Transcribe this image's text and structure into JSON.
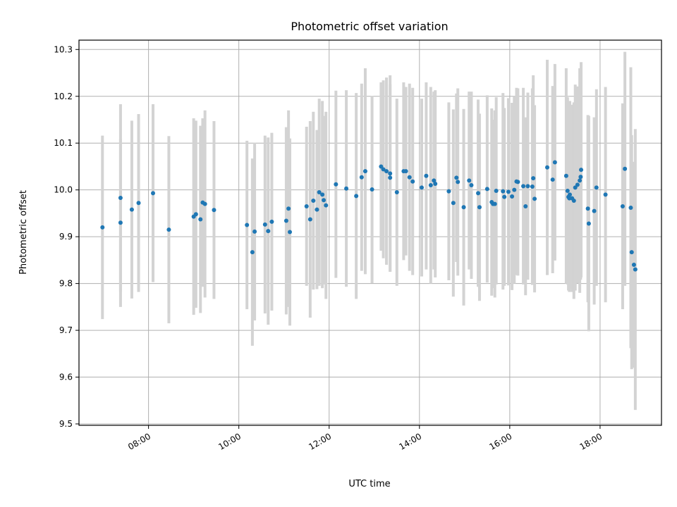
{
  "chart_data": {
    "type": "scatter",
    "title": "Photometric offset variation",
    "xlabel": "UTC time",
    "ylabel": "Photometric offset",
    "x_unit": "hours UTC",
    "xlim": [
      6.46,
      19.36
    ],
    "ylim": [
      9.497,
      10.32
    ],
    "x_ticks": [
      8,
      10,
      12,
      14,
      16,
      18
    ],
    "x_tick_labels": [
      "08:00",
      "10:00",
      "12:00",
      "14:00",
      "16:00",
      "18:00"
    ],
    "y_ticks": [
      9.5,
      9.6,
      9.7,
      9.8,
      9.9,
      10.0,
      10.1,
      10.2,
      10.3
    ],
    "y_tick_labels": [
      "9.5",
      "9.6",
      "9.7",
      "9.8",
      "9.9",
      "10.0",
      "10.1",
      "10.2",
      "10.3"
    ],
    "grid": true,
    "legend": "none",
    "colors": {
      "point": "#1f77b4",
      "errorbar": "#d3d3d3",
      "grid": "#b0b0b0",
      "axes": "#000000"
    },
    "series": [
      {
        "x": [
          6.98,
          7.38,
          7.38,
          7.63,
          7.78,
          8.1,
          8.45,
          9.0,
          9.05,
          9.15,
          9.2,
          9.25,
          9.45,
          10.18,
          10.3,
          10.35,
          10.58,
          10.65,
          10.73,
          11.05,
          11.1,
          11.13,
          11.5,
          11.58,
          11.65,
          11.73,
          11.78,
          11.85,
          11.88,
          11.93,
          12.15,
          12.38,
          12.6,
          12.72,
          12.8,
          12.95,
          13.15,
          13.2,
          13.27,
          13.35,
          13.35,
          13.5,
          13.65,
          13.7,
          13.78,
          13.85,
          14.05,
          14.15,
          14.25,
          14.32,
          14.35,
          14.65,
          14.75,
          14.82,
          14.85,
          14.98,
          15.1,
          15.15,
          15.3,
          15.33,
          15.5,
          15.6,
          15.63,
          15.67,
          15.7,
          15.85,
          15.88,
          15.97,
          16.05,
          16.1,
          16.15,
          16.18,
          16.3,
          16.35,
          16.4,
          16.5,
          16.52,
          16.55,
          16.83,
          16.95,
          17.0,
          17.25,
          17.28,
          17.3,
          17.32,
          17.33,
          17.38,
          17.42,
          17.45,
          17.5,
          17.55,
          17.57,
          17.58,
          17.73,
          17.75,
          17.87,
          17.92,
          18.12,
          18.5,
          18.55,
          18.68,
          18.7,
          18.75,
          18.78
        ],
        "y": [
          9.92,
          9.93,
          9.983,
          9.958,
          9.972,
          9.993,
          9.915,
          9.943,
          9.948,
          9.937,
          9.973,
          9.97,
          9.957,
          9.925,
          9.867,
          9.911,
          9.926,
          9.912,
          9.932,
          9.934,
          9.96,
          9.91,
          9.965,
          9.937,
          9.977,
          9.958,
          9.995,
          9.99,
          9.978,
          9.967,
          10.012,
          10.003,
          9.987,
          10.027,
          10.04,
          10.001,
          10.05,
          10.044,
          10.04,
          10.035,
          10.026,
          9.995,
          10.04,
          10.04,
          10.027,
          10.018,
          10.005,
          10.03,
          10.01,
          10.02,
          10.013,
          9.997,
          9.972,
          10.026,
          10.017,
          9.963,
          10.02,
          10.01,
          9.993,
          9.963,
          10.002,
          9.974,
          9.97,
          9.97,
          9.998,
          9.997,
          9.985,
          9.996,
          9.986,
          10.0,
          10.018,
          10.017,
          10.008,
          9.965,
          10.008,
          10.007,
          10.025,
          9.981,
          10.048,
          10.022,
          10.059,
          10.03,
          9.998,
          9.985,
          9.982,
          9.99,
          9.982,
          9.977,
          10.005,
          10.011,
          10.02,
          10.028,
          10.043,
          9.96,
          9.928,
          9.955,
          10.005,
          9.99,
          9.965,
          10.045,
          9.962,
          9.867,
          9.84,
          9.83
        ],
        "yerr": [
          0.196,
          0.18,
          0.2,
          0.19,
          0.19,
          0.19,
          0.2,
          0.21,
          0.2,
          0.2,
          0.18,
          0.2,
          0.19,
          0.18,
          0.2,
          0.19,
          0.19,
          0.2,
          0.19,
          0.2,
          0.21,
          0.2,
          0.17,
          0.21,
          0.19,
          0.17,
          0.2,
          0.2,
          0.18,
          0.2,
          0.2,
          0.21,
          0.22,
          0.2,
          0.22,
          0.2,
          0.18,
          0.19,
          0.2,
          0.21,
          0.2,
          0.2,
          0.19,
          0.18,
          0.2,
          0.2,
          0.19,
          0.2,
          0.21,
          0.19,
          0.2,
          0.19,
          0.2,
          0.18,
          0.2,
          0.21,
          0.19,
          0.2,
          0.2,
          0.2,
          0.2,
          0.2,
          0.18,
          0.2,
          0.2,
          0.21,
          0.19,
          0.2,
          0.2,
          0.2,
          0.2,
          0.2,
          0.21,
          0.19,
          0.2,
          0.21,
          0.22,
          0.2,
          0.23,
          0.2,
          0.21,
          0.23,
          0.2,
          0.2,
          0.2,
          0.2,
          0.2,
          0.21,
          0.22,
          0.21,
          0.24,
          0.22,
          0.23,
          0.2,
          0.23,
          0.2,
          0.21,
          0.23,
          0.22,
          0.25,
          0.3,
          0.25,
          0.22,
          0.3
        ]
      }
    ]
  }
}
